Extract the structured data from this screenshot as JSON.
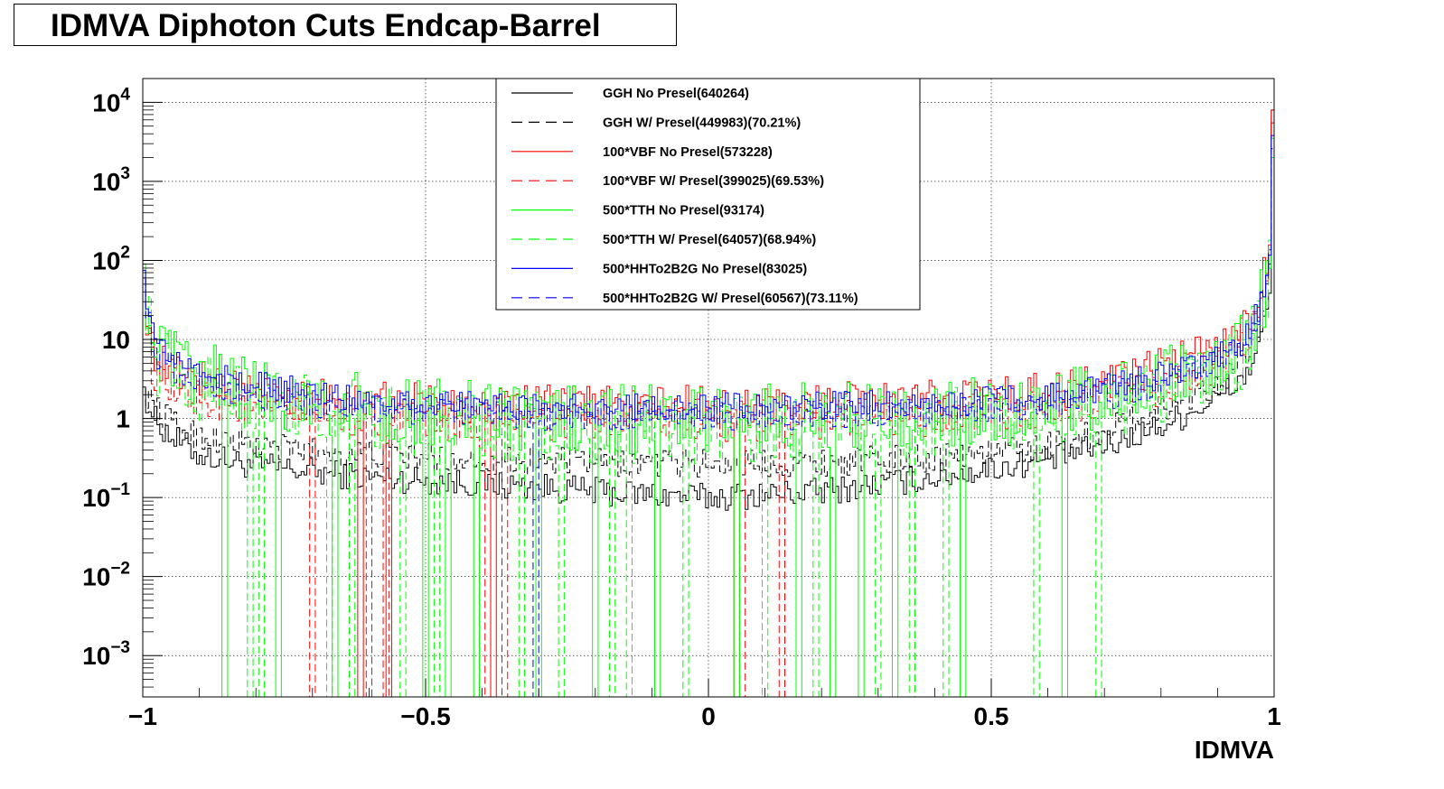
{
  "chart_data": {
    "type": "line",
    "title": "IDMVA Diphoton Cuts Endcap-Barrel",
    "xlabel": "IDMVA",
    "ylabel": "",
    "xlim": [
      -1.0,
      1.0
    ],
    "ylim": [
      0.0003,
      20000
    ],
    "yscale": "log",
    "grid": true,
    "legend_position": "top-center",
    "x_ticks": [
      {
        "value": -1.0,
        "label": "−1"
      },
      {
        "value": -0.5,
        "label": "−0.5"
      },
      {
        "value": 0.0,
        "label": "0"
      },
      {
        "value": 0.5,
        "label": "0.5"
      },
      {
        "value": 1.0,
        "label": "1"
      }
    ],
    "y_ticks": [
      {
        "value": 10000,
        "base": "10",
        "exp": "4"
      },
      {
        "value": 1000,
        "base": "10",
        "exp": "3"
      },
      {
        "value": 100,
        "base": "10",
        "exp": "2"
      },
      {
        "value": 10,
        "base": "10",
        "exp": ""
      },
      {
        "value": 1,
        "base": "1",
        "exp": ""
      },
      {
        "value": 0.1,
        "base": "10",
        "exp": "−1"
      },
      {
        "value": 0.01,
        "base": "10",
        "exp": "−2"
      },
      {
        "value": 0.001,
        "base": "10",
        "exp": "−3"
      }
    ],
    "x_profile": [
      -1.0,
      -0.98,
      -0.95,
      -0.9,
      -0.8,
      -0.6,
      -0.4,
      -0.2,
      0.0,
      0.2,
      0.4,
      0.6,
      0.7,
      0.8,
      0.9,
      0.95,
      0.97,
      0.985,
      0.995,
      1.0
    ],
    "series": [
      {
        "name": "GGH No Presel(640264)",
        "color": "#000000",
        "dash": false,
        "start": 2.5,
        "peak": 8000,
        "profile": [
          2.5,
          1.0,
          0.6,
          0.35,
          0.25,
          0.18,
          0.15,
          0.12,
          0.1,
          0.12,
          0.18,
          0.3,
          0.45,
          0.8,
          1.8,
          3.5,
          7,
          18,
          60,
          8000
        ],
        "dips": []
      },
      {
        "name": "GGH W/ Presel(449983)(70.21%)",
        "color": "#000000",
        "dash": true,
        "start": 2.5,
        "peak": 5500,
        "profile": [
          2.5,
          1.4,
          0.9,
          0.6,
          0.45,
          0.35,
          0.3,
          0.28,
          0.27,
          0.28,
          0.32,
          0.45,
          0.7,
          1.3,
          2.8,
          6,
          12,
          30,
          90,
          5500
        ],
        "dips": []
      },
      {
        "name": "100*VBF No Presel(573228)",
        "color": "#ff0000",
        "dash": false,
        "start": 60,
        "peak": 8000,
        "profile": [
          60,
          6,
          4,
          3.2,
          2.2,
          1.7,
          1.5,
          1.5,
          1.5,
          1.6,
          1.8,
          2.2,
          3.0,
          4.5,
          8,
          15,
          30,
          80,
          250,
          8000
        ],
        "dips": [
          -0.615,
          -0.565,
          -0.38,
          0.05
        ]
      },
      {
        "name": "100*VBF W/ Presel(399025)(69.53%)",
        "color": "#ff0000",
        "dash": true,
        "start": 60,
        "peak": 5500,
        "profile": [
          60,
          3,
          2.2,
          1.8,
          1.3,
          1.0,
          0.9,
          0.9,
          0.9,
          0.95,
          1.05,
          1.3,
          1.7,
          2.6,
          4.5,
          9,
          18,
          45,
          140,
          5500
        ],
        "dips": [
          -0.7,
          -0.6,
          -0.57,
          -0.4,
          -0.36,
          0.06,
          0.13
        ]
      },
      {
        "name": "500*TTH No Presel(93174)",
        "color": "#00ff00",
        "dash": false,
        "start": 90,
        "peak": 3500,
        "profile": [
          90,
          8,
          5,
          3.5,
          2.2,
          1.4,
          1.1,
          1.0,
          1.0,
          1.05,
          1.15,
          1.4,
          1.9,
          2.8,
          5,
          9,
          18,
          45,
          140,
          3500
        ],
        "dips": [
          -0.855,
          -0.76,
          -0.66,
          -0.5,
          -0.46,
          -0.41,
          -0.3,
          -0.2,
          -0.09,
          0.05,
          0.16,
          0.22,
          0.27,
          0.33,
          0.45,
          0.63
        ]
      },
      {
        "name": "500*TTH W/ Presel(64057)(68.94%)",
        "color": "#00ff00",
        "dash": true,
        "start": 80,
        "peak": 2000,
        "profile": [
          80,
          6,
          4,
          2.6,
          1.5,
          1.0,
          0.8,
          0.75,
          0.75,
          0.8,
          0.9,
          1.1,
          1.5,
          2.2,
          4,
          7,
          14,
          35,
          110,
          2000
        ],
        "dips": [
          -0.81,
          -0.79,
          -0.67,
          -0.63,
          -0.54,
          -0.48,
          -0.33,
          -0.26,
          -0.17,
          -0.14,
          -0.04,
          0.1,
          0.19,
          0.3,
          0.36,
          0.42,
          0.58,
          0.69
        ]
      },
      {
        "name": "500*HHTo2B2G No Presel(83025)",
        "color": "#0000ff",
        "dash": false,
        "start": 75,
        "peak": 3800,
        "profile": [
          75,
          10,
          6,
          4,
          2.6,
          1.8,
          1.5,
          1.4,
          1.4,
          1.45,
          1.6,
          1.9,
          2.4,
          3.5,
          6,
          11,
          22,
          55,
          170,
          3800
        ],
        "dips": []
      },
      {
        "name": "500*HHTo2B2G W/ Presel(60567)(73.11%)",
        "color": "#0000ff",
        "dash": true,
        "start": 60,
        "peak": 2600,
        "profile": [
          60,
          7,
          4.5,
          3,
          1.9,
          1.3,
          1.1,
          1.05,
          1.05,
          1.1,
          1.2,
          1.45,
          1.9,
          2.7,
          4.8,
          9,
          17,
          42,
          130,
          2600
        ],
        "dips": [
          -0.305
        ]
      }
    ]
  }
}
